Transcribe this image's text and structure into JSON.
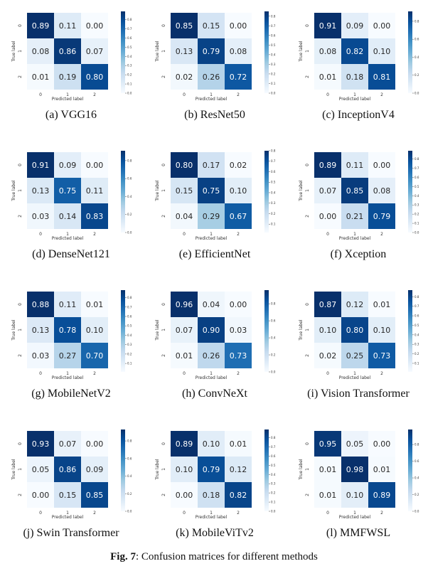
{
  "figure": {
    "label": "Fig. 7",
    "caption": ": Confusion matrices for different methods"
  },
  "axis": {
    "xlabel": "Predicted label",
    "ylabel": "True label",
    "tick_labels": [
      "0",
      "1",
      "2"
    ]
  },
  "chart_data": [
    {
      "type": "heatmap",
      "caption": "(a) VGG16",
      "matrix": [
        [
          0.89,
          0.11,
          0.0
        ],
        [
          0.08,
          0.86,
          0.07
        ],
        [
          0.01,
          0.19,
          0.8
        ]
      ],
      "colorbar_ticks": [
        "0.8",
        "0.7",
        "0.6",
        "0.5",
        "0.4",
        "0.3",
        "0.2",
        "0.1",
        "0.0"
      ],
      "colorbar_range": [
        0.0,
        0.89
      ]
    },
    {
      "type": "heatmap",
      "caption": "(b) ResNet50",
      "matrix": [
        [
          0.85,
          0.15,
          0.0
        ],
        [
          0.13,
          0.79,
          0.08
        ],
        [
          0.02,
          0.26,
          0.72
        ]
      ],
      "colorbar_ticks": [
        "0.8",
        "0.7",
        "0.6",
        "0.5",
        "0.4",
        "0.3",
        "0.2",
        "0.1",
        "0.0"
      ],
      "colorbar_range": [
        0.0,
        0.85
      ]
    },
    {
      "type": "heatmap",
      "caption": "(c) InceptionV4",
      "matrix": [
        [
          0.91,
          0.09,
          0.0
        ],
        [
          0.08,
          0.82,
          0.1
        ],
        [
          0.01,
          0.18,
          0.81
        ]
      ],
      "colorbar_ticks": [
        "0.8",
        "0.6",
        "0.4",
        "0.2",
        "0.0"
      ],
      "colorbar_range": [
        0.0,
        0.91
      ]
    },
    {
      "type": "heatmap",
      "caption": "(d) DenseNet121",
      "matrix": [
        [
          0.91,
          0.09,
          0.0
        ],
        [
          0.13,
          0.75,
          0.11
        ],
        [
          0.03,
          0.14,
          0.83
        ]
      ],
      "colorbar_ticks": [
        "0.8",
        "0.6",
        "0.4",
        "0.2",
        "0.0"
      ],
      "colorbar_range": [
        0.0,
        0.91
      ]
    },
    {
      "type": "heatmap",
      "caption": "(e) EfficientNet",
      "matrix": [
        [
          0.8,
          0.17,
          0.02
        ],
        [
          0.15,
          0.75,
          0.1
        ],
        [
          0.04,
          0.29,
          0.67
        ]
      ],
      "colorbar_ticks": [
        "0.8",
        "0.7",
        "0.6",
        "0.5",
        "0.4",
        "0.3",
        "0.2",
        "0.1"
      ],
      "colorbar_range": [
        0.02,
        0.8
      ]
    },
    {
      "type": "heatmap",
      "caption": "(f) Xception",
      "matrix": [
        [
          0.89,
          0.11,
          0.0
        ],
        [
          0.07,
          0.85,
          0.08
        ],
        [
          0.0,
          0.21,
          0.79
        ]
      ],
      "colorbar_ticks": [
        "0.8",
        "0.7",
        "0.6",
        "0.5",
        "0.4",
        "0.3",
        "0.2",
        "0.1",
        "0.0"
      ],
      "colorbar_range": [
        0.0,
        0.89
      ]
    },
    {
      "type": "heatmap",
      "caption": "(g) MobileNetV2",
      "matrix": [
        [
          0.88,
          0.11,
          0.01
        ],
        [
          0.13,
          0.78,
          0.1
        ],
        [
          0.03,
          0.27,
          0.7
        ]
      ],
      "colorbar_ticks": [
        "0.8",
        "0.7",
        "0.6",
        "0.5",
        "0.4",
        "0.3",
        "0.2",
        "0.1"
      ],
      "colorbar_range": [
        0.01,
        0.88
      ]
    },
    {
      "type": "heatmap",
      "caption": "(h) ConvNeXt",
      "matrix": [
        [
          0.96,
          0.04,
          0.0
        ],
        [
          0.07,
          0.9,
          0.03
        ],
        [
          0.01,
          0.26,
          0.73
        ]
      ],
      "colorbar_ticks": [
        "0.8",
        "0.6",
        "0.4",
        "0.2",
        "0.0"
      ],
      "colorbar_range": [
        0.0,
        0.96
      ]
    },
    {
      "type": "heatmap",
      "caption": "(i) Vision Transformer",
      "matrix": [
        [
          0.87,
          0.12,
          0.01
        ],
        [
          0.1,
          0.8,
          0.1
        ],
        [
          0.02,
          0.25,
          0.73
        ]
      ],
      "colorbar_ticks": [
        "0.8",
        "0.7",
        "0.6",
        "0.5",
        "0.4",
        "0.3",
        "0.2",
        "0.1"
      ],
      "colorbar_range": [
        0.01,
        0.87
      ]
    },
    {
      "type": "heatmap",
      "caption": "(j) Swin Transformer",
      "matrix": [
        [
          0.93,
          0.07,
          0.0
        ],
        [
          0.05,
          0.86,
          0.09
        ],
        [
          0.0,
          0.15,
          0.85
        ]
      ],
      "colorbar_ticks": [
        "0.8",
        "0.6",
        "0.4",
        "0.2",
        "0.0"
      ],
      "colorbar_range": [
        0.0,
        0.93
      ]
    },
    {
      "type": "heatmap",
      "caption": "(k) MobileViTv2",
      "matrix": [
        [
          0.89,
          0.1,
          0.01
        ],
        [
          0.1,
          0.79,
          0.12
        ],
        [
          0.0,
          0.18,
          0.82
        ]
      ],
      "colorbar_ticks": [
        "0.8",
        "0.7",
        "0.6",
        "0.5",
        "0.4",
        "0.3",
        "0.2",
        "0.1",
        "0.0"
      ],
      "colorbar_range": [
        0.0,
        0.89
      ]
    },
    {
      "type": "heatmap",
      "caption": "(l) MMFWSL",
      "matrix": [
        [
          0.95,
          0.05,
          0.0
        ],
        [
          0.01,
          0.98,
          0.01
        ],
        [
          0.01,
          0.1,
          0.89
        ]
      ],
      "colorbar_ticks": [
        "0.8",
        "0.6",
        "0.4",
        "0.2",
        "0.0"
      ],
      "colorbar_range": [
        0.0,
        0.98
      ]
    }
  ]
}
